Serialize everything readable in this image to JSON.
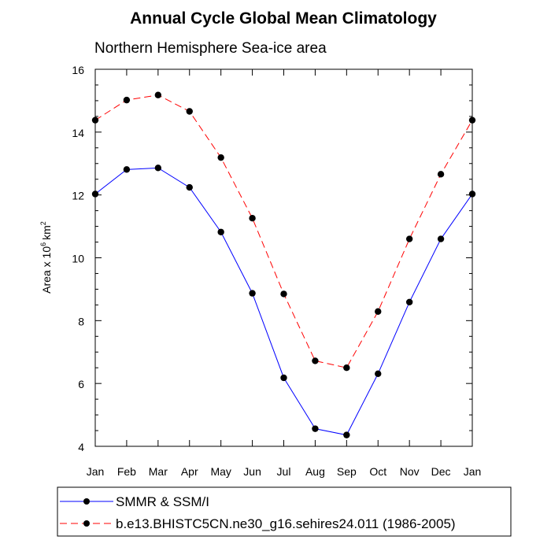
{
  "chart_data": {
    "type": "line",
    "title": "Annual Cycle Global Mean Climatology",
    "subtitle": "Northern Hemisphere Sea-ice area",
    "ylabel": "Area x 10",
    "ylabel_sup": "6",
    "ylabel_unit": "km",
    "ylabel_unit_sup": "2",
    "xlabel": "",
    "categories": [
      "Jan",
      "Feb",
      "Mar",
      "Apr",
      "May",
      "Jun",
      "Jul",
      "Aug",
      "Sep",
      "Oct",
      "Nov",
      "Dec",
      "Jan"
    ],
    "ylim": [
      4,
      16
    ],
    "yticks": [
      4,
      6,
      8,
      10,
      12,
      14,
      16
    ],
    "grid": false,
    "legend_position": "bottom",
    "series": [
      {
        "name": "SMMR & SSM/I",
        "color": "#0000ff",
        "line_style": "solid",
        "values": [
          12.03,
          12.81,
          12.86,
          12.24,
          10.82,
          8.87,
          6.18,
          4.56,
          4.36,
          6.31,
          8.59,
          10.6,
          12.03
        ]
      },
      {
        "name": "b.e13.BHISTC5CN.ne30_g16.sehires24.011 (1986-2005)",
        "color": "#ff0000",
        "line_style": "dashed",
        "values": [
          14.38,
          15.02,
          15.18,
          14.66,
          13.19,
          11.26,
          8.85,
          6.72,
          6.5,
          8.29,
          10.6,
          12.66,
          14.38
        ]
      }
    ]
  }
}
